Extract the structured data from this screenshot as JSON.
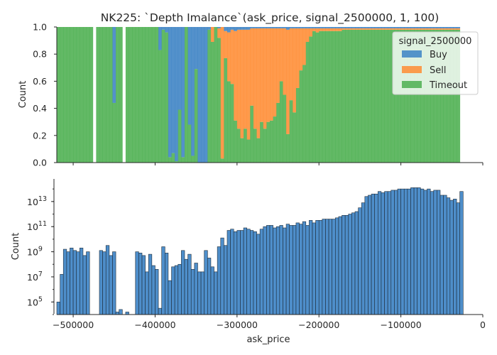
{
  "chart_data": [
    {
      "type": "area",
      "title": "NK225: `Depth Imalance`(ask_price, signal_2500000, 1, 100)",
      "xlabel": "",
      "ylabel": "Count",
      "xlim": [
        -520000,
        0
      ],
      "ylim": [
        0,
        1.0
      ],
      "yticks": [
        "0.0",
        "0.2",
        "0.4",
        "0.6",
        "0.8",
        "1.0"
      ],
      "stacked": "fill",
      "legend": {
        "title": "signal_2500000",
        "placement": "top-right",
        "entries": [
          "Buy",
          "Sell",
          "Timeout"
        ]
      },
      "colors": {
        "Buy": "#3b82c4",
        "Sell": "#ff8c33",
        "Timeout": "#4caf50"
      },
      "grid": false,
      "bins": {
        "start": -520000,
        "width": 4000,
        "buy": [
          0,
          0,
          0,
          0,
          0,
          0,
          0,
          0,
          0,
          0,
          0,
          0,
          0,
          0,
          0,
          0,
          0,
          0.56,
          0,
          0,
          0,
          0,
          0,
          0,
          0,
          0,
          0,
          0,
          0,
          0,
          0,
          0.17,
          0.02,
          0.04,
          0.96,
          0.93,
          0.99,
          0.61,
          0.96,
          0,
          0.72,
          0.95,
          0.31,
          1.0,
          1.0,
          1.0,
          0.02,
          0,
          0,
          0.01,
          0,
          0.03,
          0.04,
          0.02,
          0.03,
          0.02,
          0.02,
          0.02,
          0.02,
          0.01,
          0.01,
          0.01,
          0.01,
          0.01,
          0.01,
          0.01,
          0.01,
          0.01,
          0.01,
          0.01,
          0.02,
          0.01,
          0.01,
          0.01,
          0.01,
          0.01,
          0.01,
          0.01,
          0.01,
          0.01,
          0.01,
          0.01,
          0.01,
          0.01,
          0.01,
          0.01,
          0.01,
          0.01,
          0.01,
          0.01,
          0.01,
          0.01,
          0.01,
          0.01,
          0.01,
          0.01,
          0.01,
          0.01,
          0.01,
          0.01,
          0.01,
          0.01,
          0.01,
          0.01,
          0.01,
          0.01,
          0.01,
          0.01,
          0.01,
          0.01,
          0.01,
          0.01,
          0.01,
          0.01,
          0.01,
          0.01,
          0.01,
          0.01,
          0.01,
          0.01,
          0.01,
          0.01,
          0.01
        ],
        "sell": [
          0,
          0,
          0,
          0,
          0,
          0,
          0,
          0,
          0,
          0,
          0,
          0,
          0,
          0,
          0,
          0,
          0,
          0,
          0,
          0,
          0,
          0,
          0,
          0,
          0,
          0,
          0,
          0,
          0,
          0,
          0,
          0,
          0,
          0,
          0,
          0,
          0,
          0,
          0,
          0,
          0,
          0,
          0,
          0,
          0,
          0,
          0,
          0.11,
          0,
          0.07,
          0.97,
          0.2,
          0.36,
          0.4,
          0.66,
          0.73,
          0.8,
          0.73,
          0.81,
          0.57,
          0.74,
          0.81,
          0.69,
          0.74,
          0.69,
          0.68,
          0.65,
          0.55,
          0.39,
          0.49,
          0.77,
          0.53,
          0.62,
          0.44,
          0.31,
          0.27,
          0.1,
          0.06,
          0.02,
          0.03,
          0.02,
          0.02,
          0.02,
          0.02,
          0.02,
          0.02,
          0.02,
          0.01,
          0.01,
          0.01,
          0.01,
          0.01,
          0.01,
          0.01,
          0.01,
          0.01,
          0.01,
          0.01,
          0.01,
          0.01,
          0.01,
          0.01,
          0.01,
          0.01,
          0.01,
          0.01,
          0.01,
          0.01,
          0.01,
          0.01,
          0.01,
          0.01,
          0.01,
          0.01,
          0.01,
          0.01,
          0.01,
          0.01,
          0.01,
          0.01,
          0.01,
          0.01,
          0.01,
          0.01,
          0.01
        ],
        "gaps": [
          11,
          20
        ]
      }
    },
    {
      "type": "bar",
      "xlabel": "ask_price",
      "ylabel": "Count",
      "xlim": [
        -520000,
        0
      ],
      "yscale": "log",
      "ylim_exp": [
        4,
        14.8
      ],
      "xticks": [
        "−500000",
        "−400000",
        "−300000",
        "−200000",
        "−100000",
        "0"
      ],
      "ytick_labels": [
        {
          "base": "10",
          "exp": "5",
          "value": 100000
        },
        {
          "base": "10",
          "exp": "7",
          "value": 10000000
        },
        {
          "base": "10",
          "exp": "9",
          "value": 1000000000
        },
        {
          "base": "10",
          "exp": "11",
          "value": 100000000000
        },
        {
          "base": "10",
          "exp": "13",
          "value": 10000000000000
        }
      ],
      "color": "#3b82c4",
      "bins": {
        "start": -520000,
        "width": 4000,
        "log10_counts": [
          5.0,
          7.2,
          9.2,
          9.0,
          9.3,
          9.1,
          9.0,
          9.3,
          8.7,
          9.0,
          0,
          0,
          0,
          9.1,
          9.0,
          9.5,
          8.7,
          9.0,
          4.2,
          4.4,
          0,
          4.2,
          0,
          0,
          9.0,
          8.9,
          8.7,
          7.4,
          8.8,
          7.9,
          7.6,
          4.5,
          9.4,
          8.9,
          6.7,
          7.8,
          7.9,
          8.0,
          9.1,
          8.4,
          8.8,
          7.6,
          8.1,
          7.4,
          7.4,
          9.1,
          8.5,
          7.8,
          7.4,
          9.4,
          10.1,
          9.5,
          10.7,
          10.8,
          10.6,
          10.7,
          10.7,
          10.9,
          10.8,
          10.7,
          10.6,
          10.4,
          10.8,
          11.0,
          11.1,
          11.1,
          10.9,
          11.0,
          11.1,
          10.9,
          11.2,
          11.1,
          11.1,
          11.3,
          11.2,
          11.4,
          11.1,
          11.5,
          11.3,
          11.5,
          11.5,
          11.6,
          11.6,
          11.6,
          11.6,
          11.7,
          11.8,
          11.9,
          11.9,
          12.0,
          12.1,
          12.2,
          12.5,
          12.9,
          13.4,
          13.5,
          13.6,
          13.6,
          13.8,
          13.7,
          13.8,
          13.8,
          13.9,
          13.9,
          14.0,
          14.0,
          14.0,
          14.0,
          14.1,
          14.1,
          14.1,
          14.0,
          13.9,
          14.0,
          13.8,
          13.9,
          13.9,
          13.5,
          13.5,
          13.3,
          13.1,
          13.2,
          12.9,
          13.8
        ]
      }
    }
  ]
}
